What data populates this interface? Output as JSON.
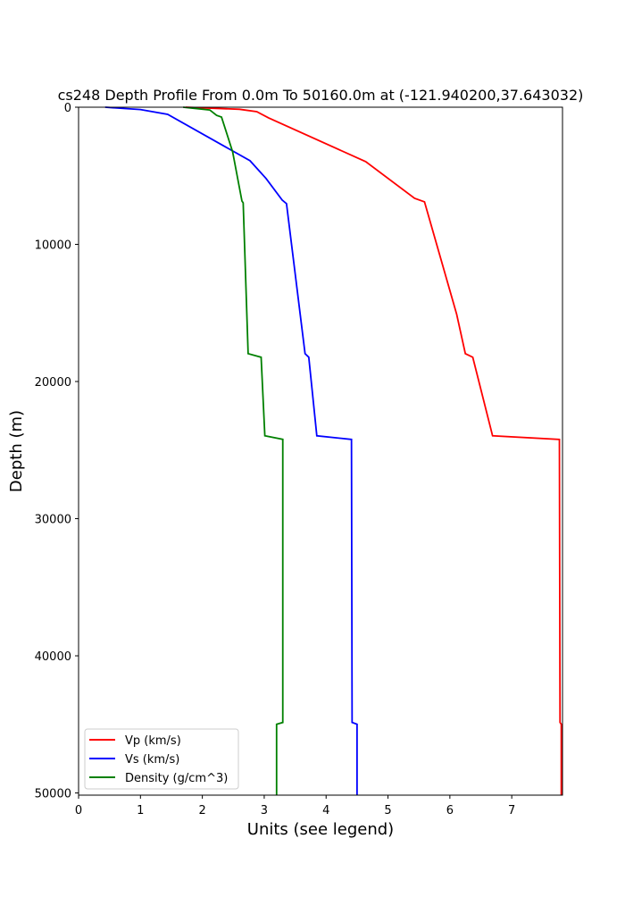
{
  "chart_data": {
    "type": "line",
    "title": "cs248 Depth Profile From 0.0m To 50160.0m at (-121.940200,37.643032)",
    "xlabel": "Units (see legend)",
    "ylabel": "Depth (m)",
    "xlim": [
      0,
      7.82
    ],
    "ylim": [
      50160,
      0
    ],
    "y_inverted": true,
    "grid": false,
    "legend_position": "lower-left",
    "xticks": [
      "0",
      "1",
      "2",
      "3",
      "4",
      "5",
      "6",
      "7"
    ],
    "yticks": [
      "0",
      "10000",
      "20000",
      "30000",
      "40000",
      "50000"
    ],
    "series": [
      {
        "name": "Vp (km/s)",
        "color": "#ff0000",
        "points": [
          [
            1.73,
            0
          ],
          [
            2.6,
            150
          ],
          [
            2.88,
            325
          ],
          [
            3.07,
            780
          ],
          [
            4.64,
            3970
          ],
          [
            5.43,
            6640
          ],
          [
            5.59,
            6900
          ],
          [
            6.11,
            15100
          ],
          [
            6.25,
            17970
          ],
          [
            6.37,
            18230
          ],
          [
            6.69,
            23960
          ],
          [
            7.77,
            24220
          ],
          [
            7.78,
            44860
          ],
          [
            7.8,
            44990
          ],
          [
            7.8,
            50160
          ]
        ]
      },
      {
        "name": "Vs (km/s)",
        "color": "#0000ff",
        "points": [
          [
            0.43,
            0
          ],
          [
            1.0,
            170
          ],
          [
            1.44,
            520
          ],
          [
            2.77,
            3900
          ],
          [
            3.03,
            5200
          ],
          [
            3.29,
            6770
          ],
          [
            3.36,
            7030
          ],
          [
            3.66,
            17970
          ],
          [
            3.72,
            18230
          ],
          [
            3.85,
            23960
          ],
          [
            4.41,
            24220
          ],
          [
            4.42,
            44860
          ],
          [
            4.5,
            44990
          ],
          [
            4.5,
            50160
          ]
        ]
      },
      {
        "name": "Density (g/cm^3)",
        "color": "#008000",
        "points": [
          [
            1.69,
            0
          ],
          [
            2.12,
            200
          ],
          [
            2.23,
            590
          ],
          [
            2.31,
            720
          ],
          [
            2.49,
            3260
          ],
          [
            2.64,
            6840
          ],
          [
            2.66,
            6970
          ],
          [
            2.74,
            17970
          ],
          [
            2.95,
            18230
          ],
          [
            3.01,
            23960
          ],
          [
            3.3,
            24220
          ],
          [
            3.3,
            44860
          ],
          [
            3.2,
            44990
          ],
          [
            3.2,
            50160
          ]
        ]
      }
    ]
  }
}
